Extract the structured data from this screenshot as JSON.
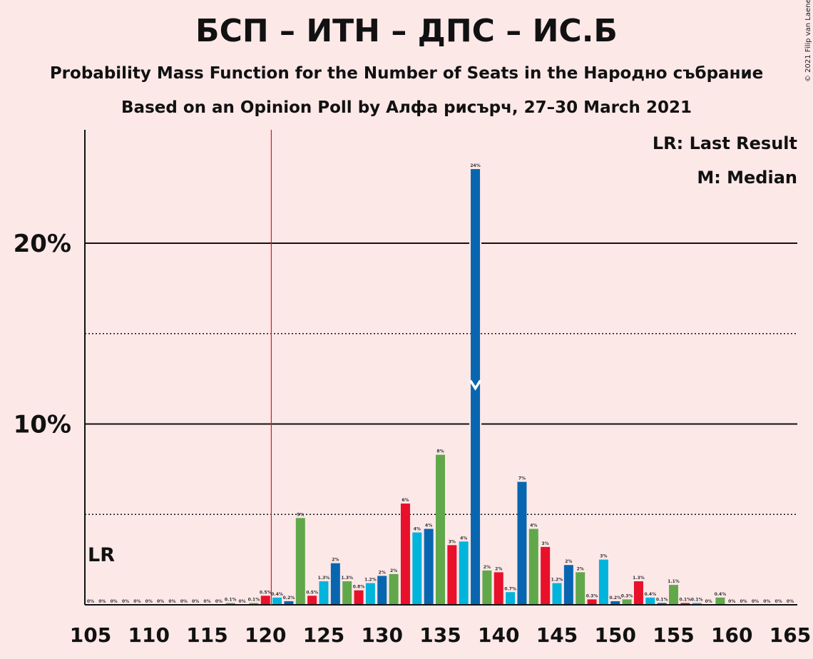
{
  "chart_data": {
    "type": "bar",
    "title": "БСП – ИТН – ДПС – ИС.Б",
    "subtitle": "Probability Mass Function for the Number of Seats in the Народно събрание",
    "subtitle2": "Based on an Opinion Poll by Алфа рисърч, 27–30 March 2021",
    "copyright": "© 2021 Filip van Laenen",
    "legend": {
      "lr": "LR: Last Result",
      "median": "M: Median",
      "placement": "top-right"
    },
    "lr_label": "LR",
    "last_result": 120.5,
    "median": 138,
    "x": [
      105,
      106,
      107,
      108,
      109,
      110,
      111,
      112,
      113,
      114,
      115,
      116,
      117,
      118,
      119,
      120,
      121,
      122,
      123,
      124,
      125,
      126,
      127,
      128,
      129,
      130,
      131,
      132,
      133,
      134,
      135,
      136,
      137,
      138,
      139,
      140,
      141,
      142,
      143,
      144,
      145,
      146,
      147,
      148,
      149,
      150,
      151,
      152,
      153,
      154,
      155,
      156,
      157,
      158,
      159,
      160,
      161,
      162,
      163,
      164,
      165
    ],
    "values": [
      0,
      0,
      0,
      0,
      0,
      0,
      0,
      0,
      0,
      0,
      0,
      0,
      0.1,
      0,
      0.1,
      0.5,
      0.4,
      0.2,
      4.8,
      0.5,
      1.3,
      2.3,
      1.3,
      0.8,
      1.2,
      1.6,
      1.7,
      5.6,
      4.0,
      4.2,
      8.3,
      3.3,
      3.5,
      24.1,
      1.9,
      1.8,
      0.7,
      6.8,
      4.2,
      3.2,
      1.2,
      2.2,
      1.8,
      0.3,
      2.5,
      0.2,
      0.3,
      1.3,
      0.4,
      0.1,
      1.1,
      0.1,
      0.1,
      0,
      0.4,
      0,
      0,
      0,
      0,
      0,
      0
    ],
    "value_labels": [
      "0%",
      "0%",
      "0%",
      "0%",
      "0%",
      "0%",
      "0%",
      "0%",
      "0%",
      "0%",
      "0%",
      "0%",
      "0.1%",
      "0%",
      "0.1%",
      "0.5%",
      "0.4%",
      "0.2%",
      "5%",
      "0.5%",
      "1.3%",
      "2%",
      "1.3%",
      "0.8%",
      "1.2%",
      "2%",
      "2%",
      "6%",
      "4%",
      "4%",
      "8%",
      "3%",
      "4%",
      "24%",
      "2%",
      "2%",
      "0.7%",
      "7%",
      "4%",
      "3%",
      "1.2%",
      "2%",
      "2%",
      "0.3%",
      "3%",
      "0.2%",
      "0.3%",
      "1.3%",
      "0.4%",
      "0.1%",
      "1.1%",
      "0.1%",
      "0.1%",
      "0%",
      "0.4%",
      "0%",
      "0%",
      "0%",
      "0%",
      "0%",
      "0%"
    ],
    "colors": [
      "#60a84a",
      "#60a84a",
      "#60a84a",
      "#60a84a",
      "#60a84a",
      "#60a84a",
      "#60a84a",
      "#60a84a",
      "#60a84a",
      "#60a84a",
      "#60a84a",
      "#60a84a",
      "#60a84a",
      "#60a84a",
      "#60a84a",
      "#e8102a",
      "#00b4dc",
      "#0866b0",
      "#60a84a",
      "#e8102a",
      "#00b4dc",
      "#0866b0",
      "#60a84a",
      "#e8102a",
      "#00b4dc",
      "#0866b0",
      "#60a84a",
      "#e8102a",
      "#00b4dc",
      "#0866b0",
      "#60a84a",
      "#e8102a",
      "#00b4dc",
      "#0866b0",
      "#60a84a",
      "#e8102a",
      "#00b4dc",
      "#0866b0",
      "#60a84a",
      "#e8102a",
      "#00b4dc",
      "#0866b0",
      "#60a84a",
      "#e8102a",
      "#00b4dc",
      "#0866b0",
      "#60a84a",
      "#e8102a",
      "#00b4dc",
      "#0866b0",
      "#60a84a",
      "#e8102a",
      "#00b4dc",
      "#0866b0",
      "#60a84a",
      "#60a84a",
      "#60a84a",
      "#60a84a",
      "#60a84a",
      "#60a84a",
      "#60a84a"
    ],
    "x_ticks": [
      105,
      110,
      115,
      120,
      125,
      130,
      135,
      140,
      145,
      150,
      155,
      160,
      165
    ],
    "y_ticks_labeled": [
      10,
      20
    ],
    "y_tick_labels": [
      "10%",
      "20%"
    ],
    "y_gridlines_solid": [
      10,
      20
    ],
    "y_gridlines_dotted": [
      5,
      15
    ],
    "ylim": [
      0,
      26
    ],
    "xlim": [
      104.5,
      165.5
    ],
    "grid": true
  }
}
